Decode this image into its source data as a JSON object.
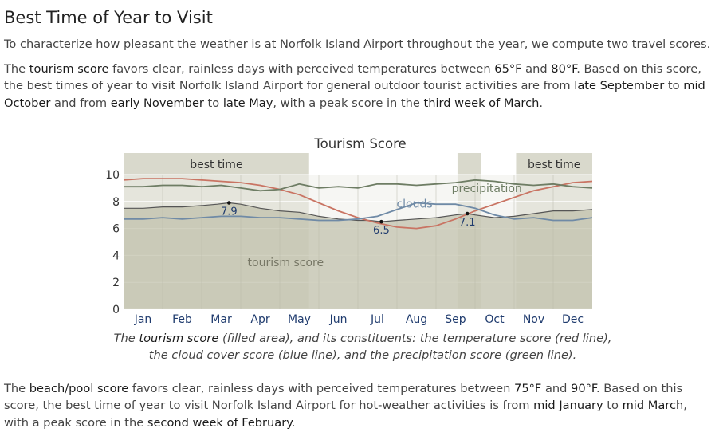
{
  "page": {
    "title": "Best Time of Year to Visit",
    "intro": "To characterize how pleasant the weather is at Norfolk Island Airport throughout the year, we compute two travel scores.",
    "tourism": {
      "t1": "The ",
      "k1": "tourism score",
      "t2": " favors clear, rainless days with perceived temperatures between ",
      "k2": "65°F",
      "t3": " and ",
      "k3": "80°F",
      "t4": ". Based on this score, the best times of year to visit Norfolk Island Airport for general outdoor tourist activities are from ",
      "k4": "late September",
      "t5": " to ",
      "k5": "mid October",
      "t6": " and from ",
      "k6": "early November",
      "t7": " to ",
      "k7": "late May",
      "t8": ", with a peak score in the ",
      "k8": "third week of March",
      "t9": "."
    },
    "caption": {
      "t1": "The ",
      "k1": "tourism score",
      "t2": " (filled area), and its constituents: the temperature score (red line), the cloud cover score (blue line), and the precipitation score (green line)."
    },
    "beach": {
      "t1": "The ",
      "k1": "beach/pool score",
      "t2": " favors clear, rainless days with perceived temperatures between ",
      "k2": "75°F",
      "t3": " and ",
      "k3": "90°F",
      "t4": ". Based on this score, the best time of year to visit Norfolk Island Airport for hot-weather activities is from ",
      "k4": "mid January",
      "t5": " to ",
      "k5": "mid March",
      "t6": ", with a peak score in the ",
      "k6": "second week of February",
      "t7": "."
    }
  },
  "chart_data": {
    "type": "area",
    "title": "Tourism Score",
    "x_unit": "month",
    "xlim": [
      0,
      12
    ],
    "ylim": [
      0,
      10
    ],
    "y_ticks": [
      0,
      2,
      4,
      6,
      8,
      10
    ],
    "x_tick_labels": [
      "Jan",
      "Feb",
      "Mar",
      "Apr",
      "May",
      "Jun",
      "Jul",
      "Aug",
      "Sep",
      "Oct",
      "Nov",
      "Dec"
    ],
    "best_time_periods": [
      {
        "start": 0,
        "end": 4.75,
        "label": "best time"
      },
      {
        "start": 8.55,
        "end": 9.15,
        "label": ""
      },
      {
        "start": 10.05,
        "end": 12,
        "label": "best time"
      }
    ],
    "series": [
      {
        "name": "tourism score",
        "kind": "filled area",
        "color": "#bfbfa8",
        "line_color": "#555555",
        "x": [
          0,
          0.5,
          1,
          1.5,
          2,
          2.4,
          2.7,
          3,
          3.5,
          4,
          4.5,
          5,
          5.5,
          6,
          6.3,
          6.6,
          7,
          7.5,
          8,
          8.5,
          8.8,
          9,
          9.5,
          10,
          10.5,
          11,
          11.5,
          12
        ],
        "y": [
          7.5,
          7.5,
          7.6,
          7.6,
          7.7,
          7.8,
          7.9,
          7.8,
          7.5,
          7.3,
          7.2,
          6.9,
          6.7,
          6.6,
          6.6,
          6.5,
          6.6,
          6.7,
          6.8,
          7.0,
          7.1,
          7.0,
          6.8,
          6.9,
          7.1,
          7.3,
          7.3,
          7.4
        ]
      },
      {
        "name": "temperature score",
        "kind": "line",
        "color": "#c97463",
        "x": [
          0,
          0.5,
          1,
          1.5,
          2,
          2.5,
          3,
          3.5,
          4,
          4.5,
          5,
          5.5,
          6,
          6.5,
          7,
          7.5,
          8,
          8.5,
          9,
          9.5,
          10,
          10.5,
          11,
          11.5,
          12
        ],
        "y": [
          9.6,
          9.7,
          9.7,
          9.7,
          9.6,
          9.5,
          9.4,
          9.2,
          8.9,
          8.5,
          7.9,
          7.3,
          6.8,
          6.4,
          6.1,
          6.0,
          6.2,
          6.7,
          7.3,
          7.8,
          8.3,
          8.8,
          9.1,
          9.4,
          9.5
        ]
      },
      {
        "name": "cloud cover score",
        "kind": "line",
        "color": "#6f8aa6",
        "label": "clouds",
        "x": [
          0,
          0.5,
          1,
          1.5,
          2,
          2.5,
          3,
          3.5,
          4,
          4.5,
          5,
          5.5,
          6,
          6.5,
          7,
          7.5,
          8,
          8.5,
          9,
          9.5,
          10,
          10.5,
          11,
          11.5,
          12
        ],
        "y": [
          6.7,
          6.7,
          6.8,
          6.7,
          6.8,
          6.9,
          6.9,
          6.8,
          6.8,
          6.7,
          6.6,
          6.6,
          6.7,
          6.9,
          7.4,
          7.9,
          7.8,
          7.8,
          7.5,
          7.0,
          6.7,
          6.8,
          6.6,
          6.6,
          6.8
        ]
      },
      {
        "name": "precipitation score",
        "kind": "line",
        "color": "#6e7d64",
        "label": "precipitation",
        "x": [
          0,
          0.5,
          1,
          1.5,
          2,
          2.5,
          3,
          3.5,
          4,
          4.5,
          5,
          5.5,
          6,
          6.5,
          7,
          7.5,
          8,
          8.5,
          9,
          9.5,
          10,
          10.5,
          11,
          11.5,
          12
        ],
        "y": [
          9.1,
          9.1,
          9.2,
          9.2,
          9.1,
          9.2,
          9.0,
          8.8,
          8.9,
          9.3,
          9.0,
          9.1,
          9.0,
          9.3,
          9.3,
          9.2,
          9.3,
          9.4,
          9.6,
          9.5,
          9.3,
          9.2,
          9.3,
          9.1,
          9.0
        ]
      }
    ],
    "annotations": [
      {
        "label": "7.9",
        "x": 2.7,
        "y": 7.9
      },
      {
        "label": "6.5",
        "x": 6.6,
        "y": 6.5
      },
      {
        "label": "7.1",
        "x": 8.8,
        "y": 7.1
      }
    ],
    "area_label": "tourism score",
    "colors": {
      "best_band": "#d9d9cc",
      "plot_bg": "#eeeeea",
      "grid": "#ffffff",
      "tick_text": "#1f3b6e",
      "axis_text": "#333333"
    }
  }
}
